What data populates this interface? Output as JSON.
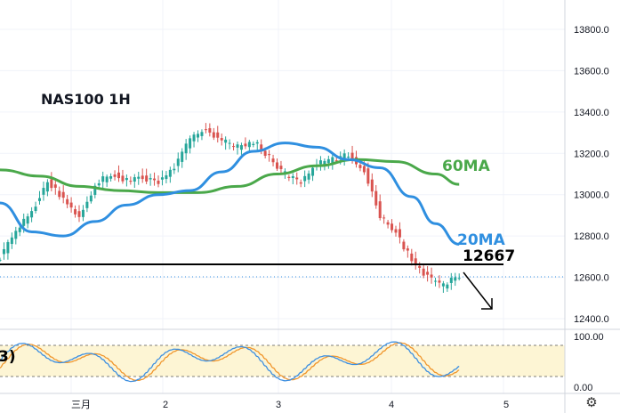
{
  "symbol_title": "NAS100 1H",
  "price_axis": {
    "labels": [
      "13800.0",
      "13600.0",
      "13400.0",
      "13200.0",
      "13000.0",
      "12800.0",
      "12600.0",
      "12400.0"
    ],
    "values": [
      13800,
      13600,
      13400,
      13200,
      13000,
      12800,
      12600,
      12400
    ]
  },
  "stoch_axis": {
    "labels": [
      "100.00",
      "0.00"
    ]
  },
  "time_axis": {
    "labels": [
      "三月",
      "2",
      "3",
      "4",
      "5"
    ]
  },
  "annotations": {
    "ma60": "60MA",
    "ma20": "20MA",
    "level": "12667",
    "stoch_partial": "3)"
  },
  "colors": {
    "ma20": "#2f8fe0",
    "ma60": "#4aa84a",
    "up_candle": "#26a69a",
    "down_candle": "#d9534f",
    "stoch_band": "#fdf5d4",
    "stoch_k": "#3d8fe0",
    "stoch_d": "#f0962c"
  },
  "icons": {
    "settings": "gear-icon"
  },
  "chart_data": {
    "type": "line",
    "title": "NAS100 1H",
    "xlabel": "",
    "ylabel": "",
    "ylim": [
      12360,
      13880
    ],
    "x_ticks": [
      "三月",
      "2",
      "3",
      "4",
      "5"
    ],
    "series": [
      {
        "name": "20MA",
        "x": [
          0,
          8,
          16,
          24,
          32,
          40,
          48,
          56,
          64,
          72,
          80,
          88,
          96,
          104,
          110,
          116
        ],
        "values": [
          12960,
          12820,
          12800,
          12870,
          12950,
          13000,
          13020,
          13110,
          13210,
          13250,
          13230,
          13170,
          13130,
          12990,
          12860,
          12760
        ]
      },
      {
        "name": "60MA",
        "x": [
          0,
          10,
          20,
          30,
          40,
          50,
          60,
          70,
          80,
          90,
          100,
          110,
          116
        ],
        "values": [
          13120,
          13090,
          13040,
          13020,
          13010,
          13010,
          13040,
          13100,
          13140,
          13170,
          13160,
          13100,
          13050
        ]
      },
      {
        "name": "price",
        "x": [
          0,
          4,
          8,
          12,
          16,
          20,
          24,
          28,
          32,
          36,
          40,
          44,
          48,
          52,
          56,
          60,
          64,
          68,
          72,
          76,
          80,
          84,
          88,
          92,
          96,
          100,
          104,
          108,
          112,
          116
        ],
        "values": [
          12700,
          12820,
          12920,
          13060,
          12980,
          12890,
          13050,
          13100,
          13070,
          13080,
          13060,
          13130,
          13270,
          13320,
          13260,
          13230,
          13260,
          13180,
          13100,
          13060,
          13150,
          13170,
          13190,
          13120,
          12900,
          12820,
          12680,
          12600,
          12560,
          12610
        ]
      }
    ],
    "levels": [
      {
        "label": "12667",
        "value": 12667
      }
    ],
    "stochastic": {
      "range": [
        0,
        100
      ],
      "upper": 80,
      "lower": 20
    },
    "grid": true
  }
}
